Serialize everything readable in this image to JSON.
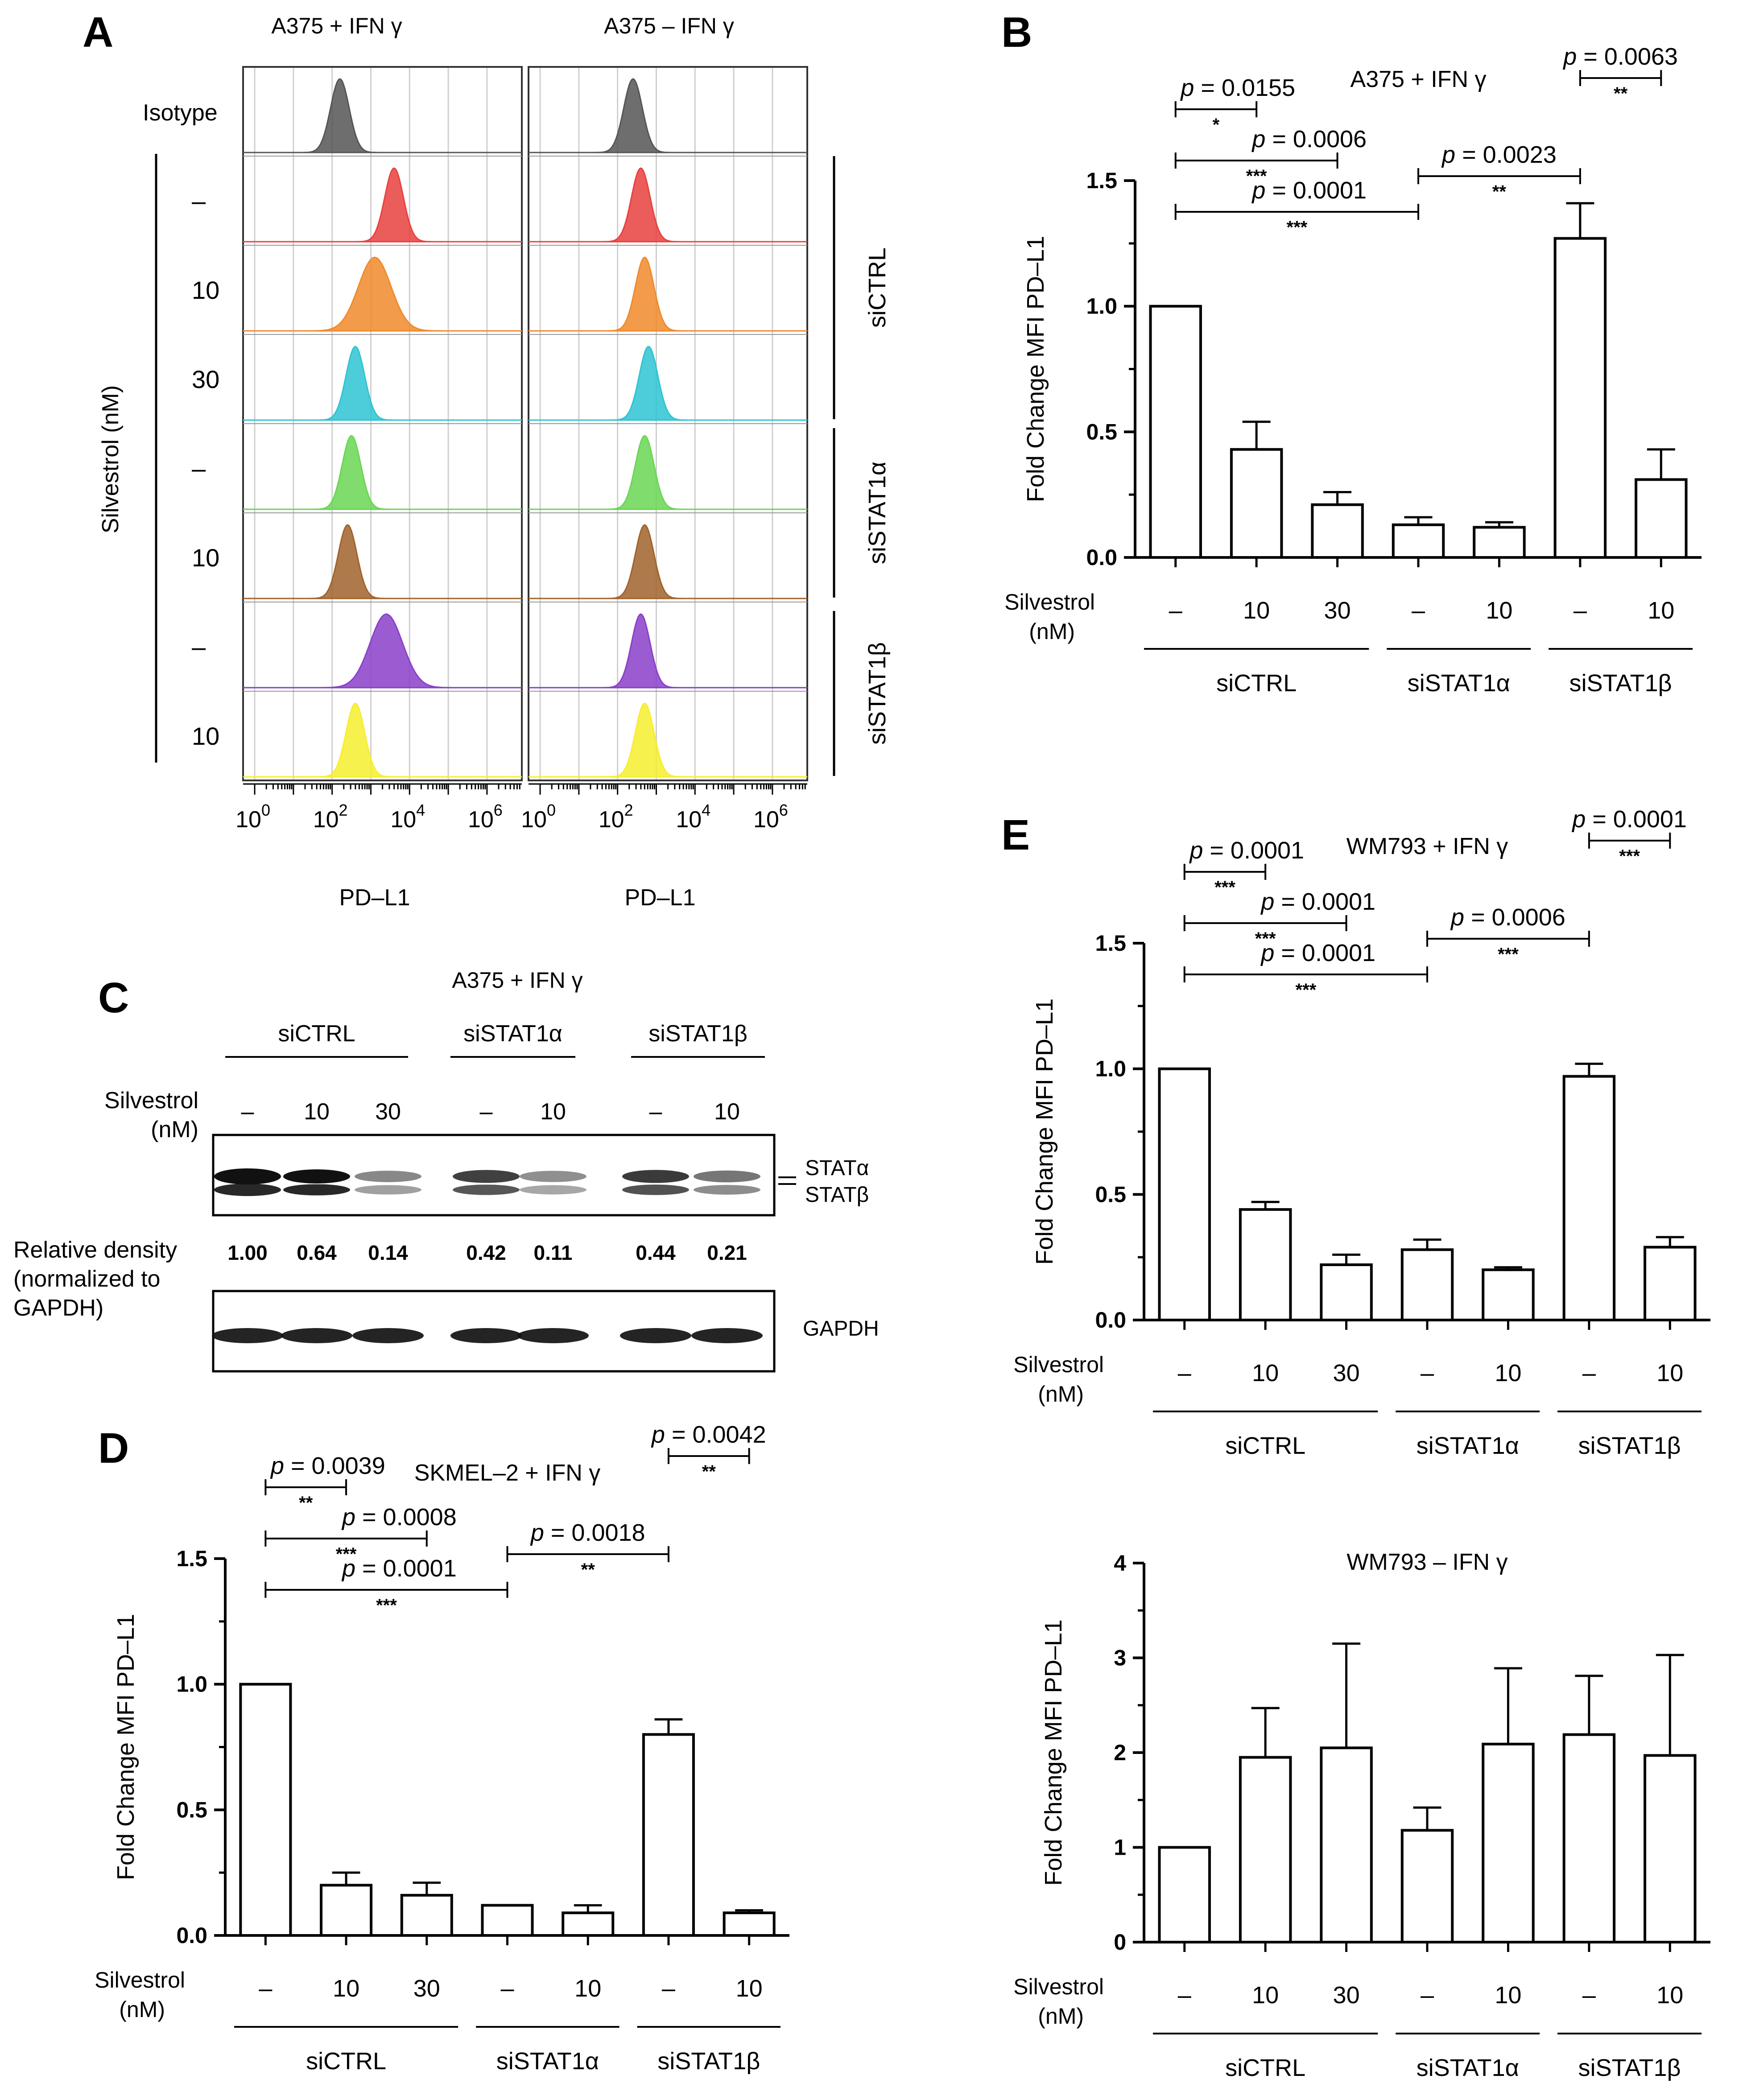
{
  "panel_letters": {
    "A": "A",
    "B": "B",
    "C": "C",
    "D": "D",
    "E": "E"
  },
  "panelA": {
    "left_title": "A375 + IFN γ",
    "right_title": "A375 – IFN γ",
    "isotype_label": "Isotype",
    "axis_side_label": "Silvestrol (nM)",
    "row_labels": [
      "–",
      "10",
      "30",
      "–",
      "10",
      "–",
      "10"
    ],
    "group_labels": [
      "siCTRL",
      "siSTAT1α",
      "siSTAT1β"
    ],
    "xaxis_label": "PD–L1",
    "tick_bases": [
      "10",
      "10",
      "10",
      "10"
    ],
    "tick_exps": [
      "0",
      "2",
      "4",
      "6"
    ],
    "row_colors": [
      "#555555",
      "#e8413e",
      "#f08a2c",
      "#2ec4d2",
      "#6ad653",
      "#a0632b",
      "#8a3fc9",
      "#f6ee2f"
    ],
    "histograms_left_log_peaks": [
      2.2,
      3.6,
      3.1,
      2.6,
      2.5,
      2.4,
      3.4,
      2.6
    ],
    "histograms_right_log_peaks": [
      2.4,
      2.6,
      2.7,
      2.8,
      2.7,
      2.7,
      2.6,
      2.7
    ]
  },
  "panelC": {
    "title": "A375 + IFN γ",
    "groups": [
      "siCTRL",
      "siSTAT1α",
      "siSTAT1β"
    ],
    "silvestrol_label": "Silvestrol",
    "nm_label": "(nM)",
    "lane_labels": [
      "–",
      "10",
      "30",
      "–",
      "10",
      "–",
      "10"
    ],
    "band_labels": [
      "STATα",
      "STATβ"
    ],
    "gapdh_label": "GAPDH",
    "density_label_lines": [
      "Relative density",
      "(normalized to",
      "GAPDH)"
    ],
    "densities": [
      "1.00",
      "0.64",
      "0.14",
      "0.42",
      "0.11",
      "0.44",
      "0.21"
    ]
  },
  "chart_data": [
    {
      "id": "B",
      "type": "bar",
      "title": "A375 + IFN γ",
      "ylabel": "Fold Change MFI PD–L1",
      "xlabel": "Silvestrol (nM)",
      "silvestrol_text": "Silvestrol",
      "nm_text": "(nM)",
      "ylim": [
        0,
        1.5
      ],
      "yticks": [
        "0.0",
        "0.5",
        "1.0",
        "1.5"
      ],
      "categories": [
        "–",
        "10",
        "30",
        "–",
        "10",
        "–",
        "10"
      ],
      "values": [
        1.0,
        0.43,
        0.21,
        0.13,
        0.12,
        1.27,
        0.31
      ],
      "errors": [
        0.0,
        0.11,
        0.05,
        0.03,
        0.02,
        0.14,
        0.12
      ],
      "groups": [
        {
          "label": "siCTRL",
          "from": 0,
          "to": 2
        },
        {
          "label": "siSTAT1α",
          "from": 3,
          "to": 4
        },
        {
          "label": "siSTAT1β",
          "from": 5,
          "to": 6
        }
      ],
      "comparisons": [
        {
          "p": "0.0155",
          "stars": "*"
        },
        {
          "p": "0.0006",
          "stars": "***"
        },
        {
          "p": "0.0001",
          "stars": "***"
        },
        {
          "p": "0.0023",
          "stars": "**"
        },
        {
          "p": "0.0063",
          "stars": "**"
        }
      ]
    },
    {
      "id": "D",
      "type": "bar",
      "title": "SKMEL–2 + IFN γ",
      "ylabel": "Fold Change MFI PD–L1",
      "xlabel": "Silvestrol (nM)",
      "silvestrol_text": "Silvestrol",
      "nm_text": "(nM)",
      "ylim": [
        0,
        1.5
      ],
      "yticks": [
        "0.0",
        "0.5",
        "1.0",
        "1.5"
      ],
      "categories": [
        "–",
        "10",
        "30",
        "–",
        "10",
        "–",
        "10"
      ],
      "values": [
        1.0,
        0.2,
        0.16,
        0.12,
        0.09,
        0.8,
        0.09
      ],
      "errors": [
        0.0,
        0.05,
        0.05,
        0.0,
        0.03,
        0.06,
        0.01
      ],
      "groups": [
        {
          "label": "siCTRL",
          "from": 0,
          "to": 2
        },
        {
          "label": "siSTAT1α",
          "from": 3,
          "to": 4
        },
        {
          "label": "siSTAT1β",
          "from": 5,
          "to": 6
        }
      ],
      "comparisons": [
        {
          "p": "0.0039",
          "stars": "**"
        },
        {
          "p": "0.0008",
          "stars": "***"
        },
        {
          "p": "0.0001",
          "stars": "***"
        },
        {
          "p": "0.0018",
          "stars": "**"
        },
        {
          "p": "0.0042",
          "stars": "**"
        }
      ]
    },
    {
      "id": "E1",
      "type": "bar",
      "title": "WM793 + IFN γ",
      "ylabel": "Fold Change MFI PD–L1",
      "xlabel": "Silvestrol (nM)",
      "silvestrol_text": "Silvestrol",
      "nm_text": "(nM)",
      "ylim": [
        0,
        1.5
      ],
      "yticks": [
        "0.0",
        "0.5",
        "1.0",
        "1.5"
      ],
      "categories": [
        "–",
        "10",
        "30",
        "–",
        "10",
        "–",
        "10"
      ],
      "values": [
        1.0,
        0.44,
        0.22,
        0.28,
        0.2,
        0.97,
        0.29
      ],
      "errors": [
        0.0,
        0.03,
        0.04,
        0.04,
        0.01,
        0.05,
        0.04
      ],
      "groups": [
        {
          "label": "siCTRL",
          "from": 0,
          "to": 2
        },
        {
          "label": "siSTAT1α",
          "from": 3,
          "to": 4
        },
        {
          "label": "siSTAT1β",
          "from": 5,
          "to": 6
        }
      ],
      "comparisons": [
        {
          "p": "0.0001",
          "stars": "***"
        },
        {
          "p": "0.0001",
          "stars": "***"
        },
        {
          "p": "0.0001",
          "stars": "***"
        },
        {
          "p": "0.0006",
          "stars": "***"
        },
        {
          "p": "0.0001",
          "stars": "***"
        }
      ]
    },
    {
      "id": "E2",
      "type": "bar",
      "title": "WM793 – IFN γ",
      "ylabel": "Fold Change MFI PD–L1",
      "xlabel": "Silvestrol (nM)",
      "silvestrol_text": "Silvestrol",
      "nm_text": "(nM)",
      "ylim": [
        0,
        4
      ],
      "yticks": [
        "0",
        "1",
        "2",
        "3",
        "4"
      ],
      "categories": [
        "–",
        "10",
        "30",
        "–",
        "10",
        "–",
        "10"
      ],
      "values": [
        1.0,
        1.95,
        2.05,
        1.18,
        2.09,
        2.19,
        1.97
      ],
      "errors": [
        0.0,
        0.52,
        1.1,
        0.24,
        0.8,
        0.62,
        1.06
      ],
      "groups": [
        {
          "label": "siCTRL",
          "from": 0,
          "to": 2
        },
        {
          "label": "siSTAT1α",
          "from": 3,
          "to": 4
        },
        {
          "label": "siSTAT1β",
          "from": 5,
          "to": 6
        }
      ],
      "comparisons": []
    }
  ]
}
